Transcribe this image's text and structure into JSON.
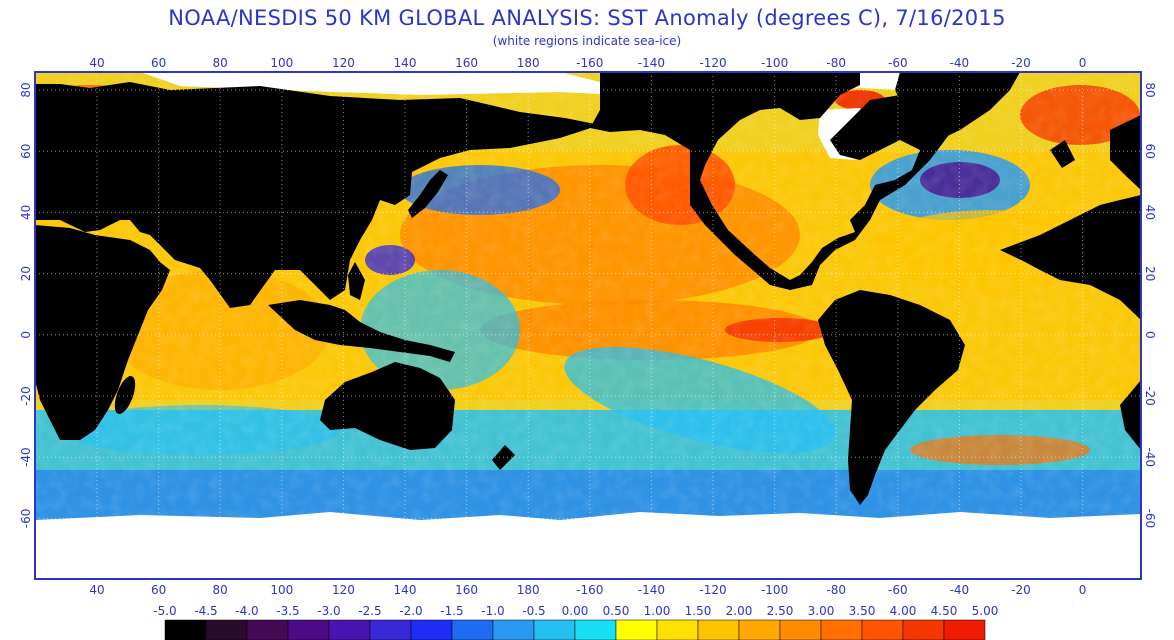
{
  "title": "NOAA/NESDIS 50 KM GLOBAL ANALYSIS: SST Anomaly (degrees C), 7/16/2015",
  "subtitle": "(white regions indicate sea-ice)",
  "map": {
    "top_longitude_labels": [
      "40",
      "60",
      "80",
      "100",
      "120",
      "140",
      "160",
      "180",
      "-160",
      "-140",
      "-120",
      "-100",
      "-80",
      "-60",
      "-40",
      "-20",
      "0"
    ],
    "bottom_longitude_labels": [
      "40",
      "60",
      "80",
      "100",
      "120",
      "140",
      "160",
      "180",
      "-160",
      "-140",
      "-120",
      "-100",
      "-80",
      "-60",
      "-40",
      "-20",
      "0"
    ],
    "left_latitude_labels": [
      "80",
      "60",
      "40",
      "20",
      "0",
      "-20",
      "-40",
      "-60"
    ],
    "right_latitude_labels": [
      "80",
      "60",
      "40",
      "20",
      "0",
      "-20",
      "-40",
      "-60"
    ],
    "colors": {
      "land": "#000000",
      "sea_ice": "#ffffff",
      "frame": "#2b35c8",
      "gridline": "#ffffff"
    }
  },
  "colorbar": {
    "labels": [
      "-5.0",
      "-4.5",
      "-4.0",
      "-3.5",
      "-3.0",
      "-2.5",
      "-2.0",
      "-1.5",
      "-1.0",
      "-0.5",
      "0.00",
      "0.50",
      "1.00",
      "1.50",
      "2.00",
      "2.50",
      "3.00",
      "3.50",
      "4.00",
      "4.50",
      "5.00"
    ],
    "colors": [
      "#000000",
      "#2a0a2e",
      "#440a55",
      "#4c0a86",
      "#4a14b0",
      "#3a28d6",
      "#1e2cf5",
      "#1f6cf2",
      "#2a9af0",
      "#26bff2",
      "#18e0f4",
      "#ffff00",
      "#ffe000",
      "#ffc400",
      "#ffa800",
      "#ff8c00",
      "#ff7000",
      "#ff5400",
      "#f53800",
      "#f01c00"
    ]
  }
}
